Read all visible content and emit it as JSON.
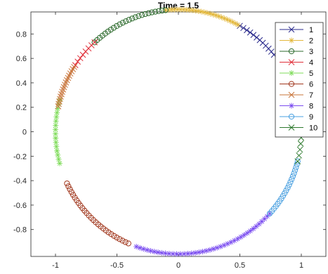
{
  "chart_data": {
    "type": "scatter",
    "title": "Time = 1.5",
    "xlabel": "",
    "ylabel": "",
    "xlim": [
      -1.2,
      1.2
    ],
    "ylim": [
      -1.02,
      0.98
    ],
    "x_ticks": [
      -1,
      -0.5,
      0,
      0.5,
      1
    ],
    "x_tick_labels": [
      "-1",
      "-0.5",
      "0",
      "0.5",
      "1"
    ],
    "y_ticks": [
      0.8,
      0.6,
      0.4,
      0.2,
      0,
      -0.2,
      -0.4,
      -0.6,
      -0.8
    ],
    "y_tick_labels": [
      "0.8",
      "0.6",
      "0.4",
      "0.2",
      "0",
      "-0.2",
      "-0.4",
      "-0.6",
      "-0.8"
    ],
    "grid": false,
    "legend_position": "top-right",
    "circle": {
      "center": [
        0,
        0
      ],
      "radius": 1
    },
    "series": [
      {
        "name": "1",
        "marker": "x",
        "color": "#2a2a8c",
        "angle_range_deg": [
          39,
          60
        ],
        "points": 12
      },
      {
        "name": "2",
        "marker": "asterisk",
        "color": "#e3b83c",
        "angle_range_deg": [
          61,
          96
        ],
        "points": 26
      },
      {
        "name": "3",
        "marker": "circle",
        "color": "#2e6b2e",
        "angle_range_deg": [
          96,
          133
        ],
        "points": 24
      },
      {
        "name": "4",
        "marker": "x",
        "color": "#e0303a",
        "angle_range_deg": [
          133,
          147
        ],
        "points": 8
      },
      {
        "name": "5",
        "marker": "asterisk",
        "color": "#7fdc5a",
        "angle_range_deg": [
          165,
          195
        ],
        "points": 16
      },
      {
        "name": "6",
        "marker": "circle",
        "color": "#a0361c",
        "angle_range_deg": [
          205,
          246
        ],
        "points": 28
      },
      {
        "name": "7",
        "marker": "x",
        "color": "#c8743a",
        "angle_range_deg": [
          148,
          168
        ],
        "points": 18
      },
      {
        "name": "8",
        "marker": "asterisk",
        "color": "#7a4cf0",
        "angle_range_deg": [
          250,
          318
        ],
        "points": 40
      },
      {
        "name": "9",
        "marker": "circle",
        "color": "#4aa0e0",
        "angle_range_deg": [
          318,
          346
        ],
        "points": 20
      },
      {
        "name": "10",
        "marker": "x",
        "color": "#2e7a2e",
        "angle_range_deg": [
          346,
          360
        ],
        "points": 6
      }
    ]
  }
}
